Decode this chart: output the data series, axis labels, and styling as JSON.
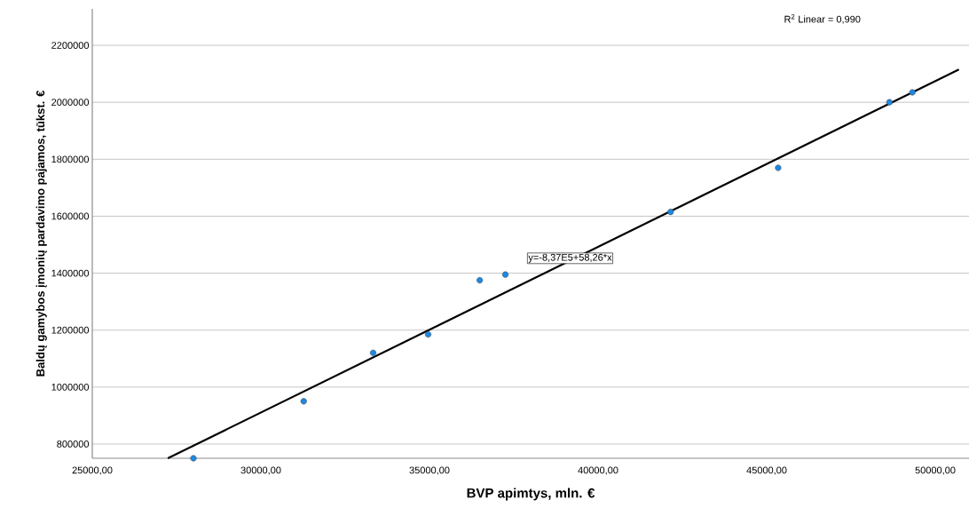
{
  "chart_data": {
    "type": "scatter",
    "xlabel": "BVP apimtys, mln. €",
    "ylabel": "Baldų gamybos įmonių pardavimo pajamos, tūkst. €",
    "series": [
      {
        "color": "#1e88e0",
        "marker": "circle",
        "x": [
          28000,
          31270,
          33330,
          34960,
          36490,
          37250,
          42150,
          45340,
          48640,
          49320
        ],
        "values": [
          750000,
          950000,
          1120000,
          1185000,
          1375000,
          1395000,
          1615000,
          1770000,
          2000000,
          2035000
        ]
      },
      {
        "type": "line",
        "color": "#000000",
        "marker": "none",
        "x": [
          27240,
          50700
        ],
        "values": [
          750000,
          2115000
        ]
      }
    ],
    "xlim": [
      25000,
      51000
    ],
    "ylim": [
      750000,
      2328000
    ],
    "xticks": [
      {
        "value": 25000,
        "label": "25000,00"
      },
      {
        "value": 30000,
        "label": "30000,00"
      },
      {
        "value": 35000,
        "label": "35000,00"
      },
      {
        "value": 40000,
        "label": "40000,00"
      },
      {
        "value": 45000,
        "label": "45000,00"
      },
      {
        "value": 50000,
        "label": "50000,00"
      }
    ],
    "yticks": [
      800000,
      1000000,
      1200000,
      1400000,
      1600000,
      1800000,
      2000000,
      2200000
    ],
    "grid": "y",
    "annotations": [
      "R$^{2}$ Linear = 0,990",
      "y=-8,37E5+58,26*x"
    ]
  }
}
